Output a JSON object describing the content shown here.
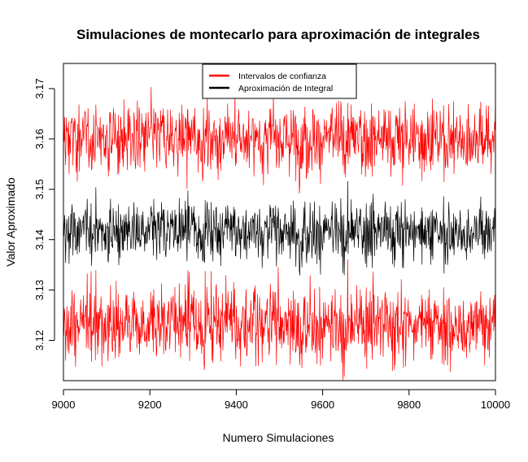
{
  "chart_data": {
    "type": "line",
    "title": "Simulaciones de montecarlo para aproximación de integrales",
    "xlabel": "Numero Simulaciones",
    "ylabel": "Valor Aproximado",
    "xlim": [
      9000,
      10000
    ],
    "ylim": [
      3.112,
      3.175
    ],
    "x_ticks": [
      9000,
      9200,
      9400,
      9600,
      9800,
      10000
    ],
    "x_tick_labels": [
      "9000",
      "9200",
      "9400",
      "9600",
      "9800",
      "10000"
    ],
    "y_ticks": [
      3.12,
      3.13,
      3.14,
      3.15,
      3.16,
      3.17
    ],
    "y_tick_labels": [
      "3.12",
      "3.13",
      "3.14",
      "3.15",
      "3.16",
      "3.17"
    ],
    "grid": false,
    "legend_position": "top-center",
    "legend": [
      {
        "label": "Intervalos de confianza",
        "color": "#ff0000"
      },
      {
        "label": "Aproximación de Integral",
        "color": "#000000"
      }
    ],
    "x_step": 1,
    "series": [
      {
        "name": "Aproximación de Integral",
        "color": "#000000",
        "summary": {
          "center": 3.1416,
          "typical_range": [
            3.13,
            3.153
          ]
        }
      },
      {
        "name": "Intervalos de confianza",
        "role": "upper",
        "color": "#ff0000",
        "summary": {
          "typical_range": [
            3.15,
            3.175
          ]
        }
      },
      {
        "name": "Intervalos de confianza",
        "role": "lower",
        "color": "#ff0000",
        "summary": {
          "typical_range": [
            3.112,
            3.133
          ]
        }
      }
    ]
  }
}
